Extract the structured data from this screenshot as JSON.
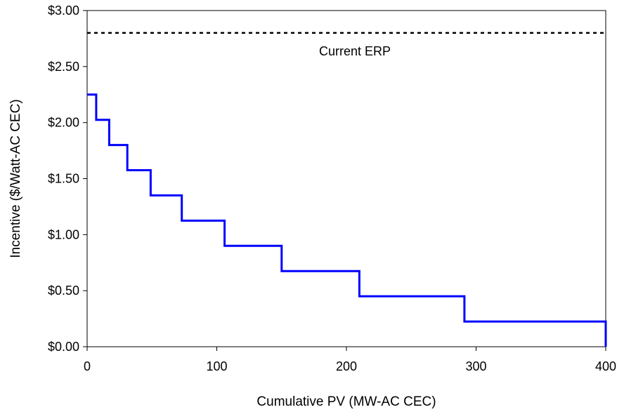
{
  "chart_data": {
    "type": "line",
    "title": "",
    "xlabel": "Cumulative PV (MW-AC CEC)",
    "ylabel": "Incentive ($/Watt-AC CEC)",
    "xlim": [
      0,
      400
    ],
    "ylim": [
      0,
      3.0
    ],
    "x_ticks": [
      0,
      100,
      200,
      300,
      400
    ],
    "x_tick_labels": [
      "0",
      "100",
      "200",
      "300",
      "400"
    ],
    "y_ticks": [
      0,
      0.5,
      1.0,
      1.5,
      2.0,
      2.5,
      3.0
    ],
    "y_tick_labels": [
      "$0.00",
      "$0.50",
      "$1.00",
      "$1.50",
      "$2.00",
      "$2.50",
      "$3.00"
    ],
    "grid": false,
    "legend": "none",
    "series": [
      {
        "style": "step",
        "color": "#0000ff",
        "x": [
          0,
          7,
          7,
          17,
          17,
          31,
          31,
          49,
          49,
          73,
          73,
          106,
          106,
          150,
          150,
          210,
          210,
          291,
          291,
          400,
          400
        ],
        "y": [
          2.25,
          2.25,
          2.025,
          2.025,
          1.8,
          1.8,
          1.575,
          1.575,
          1.35,
          1.35,
          1.125,
          1.125,
          0.9,
          0.9,
          0.675,
          0.675,
          0.45,
          0.45,
          0.225,
          0.225,
          0
        ]
      },
      {
        "style": "dotted",
        "color": "#000000",
        "x": [
          0,
          400
        ],
        "y": [
          2.8,
          2.8
        ]
      }
    ],
    "annotations": [
      {
        "text": "Current ERP",
        "x": 200,
        "y": 2.63
      }
    ]
  }
}
